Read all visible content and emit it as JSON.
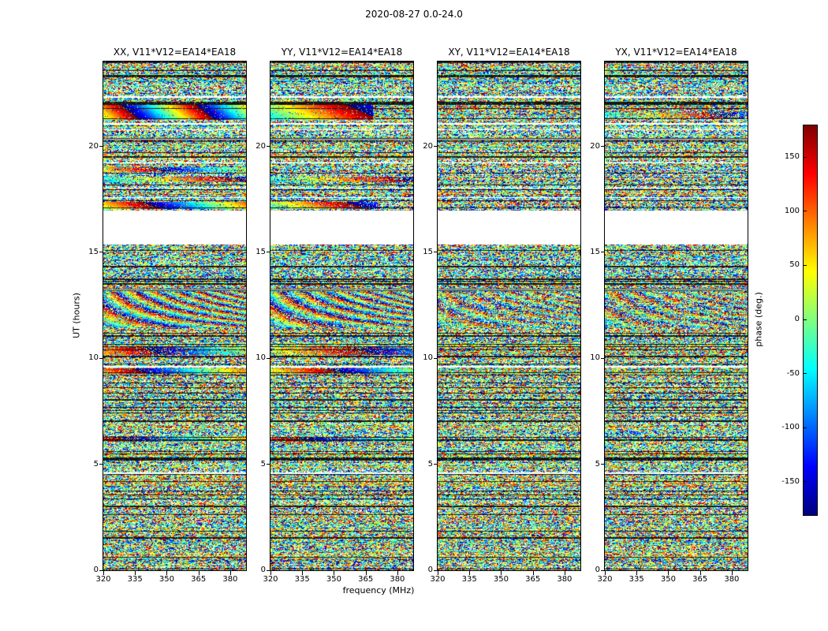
{
  "figure": {
    "title": "2020-08-27 0.0-24.0"
  },
  "chart_data": {
    "type": "heatmap",
    "title": "2020-08-27 0.0-24.0",
    "colormap": "jet",
    "panels": [
      {
        "key": "XX",
        "title": "XX, V11*V12=EA14*EA18",
        "bands": [
          {
            "ut": [
              21.25,
              21.97
            ],
            "kind": "sweep",
            "cycles": 1.9,
            "offset": 0.52,
            "drift": 0.25,
            "noise": 0.06
          },
          {
            "ut": [
              18.78,
              19.02
            ],
            "kind": "sweep",
            "cycles": 0.9,
            "offset": 0.6,
            "drift": 0.1,
            "noise": 0.35
          },
          {
            "ut": [
              18.32,
              18.55
            ],
            "kind": "sweep",
            "cycles": 0.7,
            "offset": 0.3,
            "drift": 0.1,
            "noise": 0.4
          },
          {
            "ut": [
              17.04,
              17.36
            ],
            "kind": "sweep",
            "cycles": 1.1,
            "offset": 0.55,
            "drift": 0.15,
            "noise": 0.12
          },
          {
            "ut": [
              11.45,
              13.15
            ],
            "kind": "fringe",
            "noise": 0.45
          },
          {
            "ut": [
              10.15,
              10.55
            ],
            "kind": "sweep",
            "cycles": 0.8,
            "offset": 0.68,
            "drift": 0.1,
            "noise": 0.35
          },
          {
            "ut": [
              9.28,
              9.54
            ],
            "kind": "sweep",
            "cycles": 1.0,
            "offset": 0.7,
            "drift": 0.1,
            "noise": 0.18
          },
          {
            "ut": [
              6.08,
              6.34
            ],
            "kind": "sweep",
            "cycles": 0.8,
            "offset": 0.85,
            "drift": 0.1,
            "noise": 0.3
          }
        ]
      },
      {
        "key": "YY",
        "title": "YY, V11*V12=EA14*EA18",
        "bands": [
          {
            "ut": [
              21.25,
              21.97
            ],
            "kind": "sweep",
            "cycles": 0.85,
            "offset": 0.35,
            "xend": 0.72,
            "drift": 0.2,
            "noise": 0.08
          },
          {
            "ut": [
              18.32,
              18.55
            ],
            "kind": "sweep",
            "cycles": 0.7,
            "offset": 0.3,
            "drift": 0.1,
            "noise": 0.45
          },
          {
            "ut": [
              17.04,
              17.36
            ],
            "kind": "sweep",
            "cycles": 0.9,
            "offset": 0.38,
            "xend": 0.75,
            "drift": 0.15,
            "noise": 0.18
          },
          {
            "ut": [
              11.45,
              13.15
            ],
            "kind": "fringe",
            "noise": 0.5
          },
          {
            "ut": [
              10.15,
              10.55
            ],
            "kind": "sweep",
            "cycles": 0.7,
            "offset": 0.5,
            "drift": 0.1,
            "noise": 0.4
          },
          {
            "ut": [
              9.28,
              9.54
            ],
            "kind": "sweep",
            "cycles": 0.9,
            "offset": 0.55,
            "drift": 0.1,
            "noise": 0.2
          },
          {
            "ut": [
              6.08,
              6.3
            ],
            "kind": "sweep",
            "cycles": 0.7,
            "offset": 0.8,
            "drift": 0.1,
            "noise": 0.3
          }
        ]
      },
      {
        "key": "XY",
        "title": "XY, V11*V12=EA14*EA18",
        "bands": [
          {
            "ut": [
              11.45,
              13.15
            ],
            "kind": "fringe",
            "noise": 0.72
          }
        ]
      },
      {
        "key": "YX",
        "title": "YX, V11*V12=EA14*EA18",
        "bands": [
          {
            "ut": [
              21.3,
              21.6
            ],
            "kind": "sweep",
            "cycles": 0.8,
            "offset": 0.3,
            "drift": 0.1,
            "noise": 0.55
          },
          {
            "ut": [
              11.45,
              13.15
            ],
            "kind": "fringe",
            "noise": 0.72
          }
        ]
      }
    ],
    "axes": {
      "x": {
        "label": "frequency (MHz)",
        "range": [
          320,
          387.5
        ],
        "ticks": [
          320,
          335,
          350,
          365,
          380
        ]
      },
      "y": {
        "label": "UT (hours)",
        "range": [
          0,
          24
        ],
        "ticks": [
          0,
          5,
          10,
          15,
          20
        ]
      }
    },
    "colorbar": {
      "label": "phase (deg.)",
      "range": [
        -180,
        180
      ],
      "ticks": [
        150,
        100,
        50,
        0,
        -50,
        -100,
        -150
      ]
    },
    "data_gaps_ut": [
      [
        15.35,
        16.95
      ],
      [
        22.28,
        22.35
      ],
      [
        21.02,
        21.08
      ],
      [
        18.0,
        18.05
      ],
      [
        17.55,
        17.6
      ],
      [
        13.2,
        13.25
      ],
      [
        9.55,
        9.62
      ],
      [
        4.55,
        4.6
      ]
    ],
    "dark_bands_ut": [
      [
        23.28,
        23.35
      ],
      [
        22.0,
        22.07
      ],
      [
        20.28,
        20.38
      ],
      [
        19.45,
        19.52
      ],
      [
        14.27,
        14.35
      ],
      [
        13.48,
        13.54
      ],
      [
        11.0,
        11.08
      ],
      [
        8.0,
        8.07
      ],
      [
        7.0,
        7.06
      ],
      [
        5.17,
        5.28
      ],
      [
        2.97,
        3.05
      ],
      [
        1.5,
        1.57
      ]
    ]
  }
}
